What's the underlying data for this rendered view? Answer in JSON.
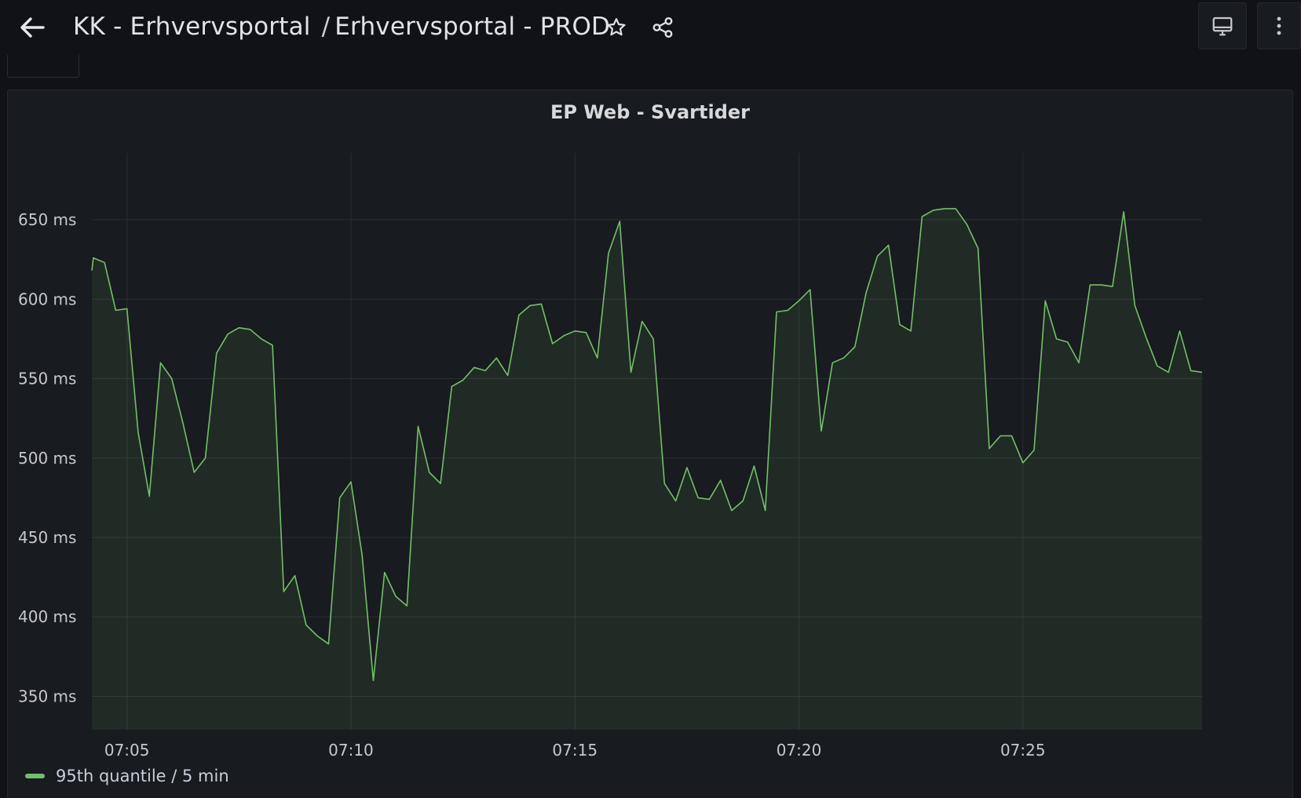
{
  "header": {
    "folder": "KK - Erhvervsportal",
    "separator": "/",
    "dashboard": "Erhvervsportal - PROD",
    "icons": {
      "back": "arrow-left-icon",
      "star": "star-icon",
      "share": "share-icon",
      "tv": "monitor-icon",
      "more": "kebab-menu-icon"
    }
  },
  "panel": {
    "title": "EP Web - Svartider"
  },
  "chart_data": {
    "type": "area",
    "title": "EP Web - Svartider",
    "xlabel": "",
    "ylabel": "",
    "x_ticks": [
      "07:05",
      "07:10",
      "07:15",
      "07:20",
      "07:25"
    ],
    "y_ticks": [
      "350 ms",
      "400 ms",
      "450 ms",
      "500 ms",
      "550 ms",
      "600 ms",
      "650 ms"
    ],
    "y_unit": "ms",
    "xlim": [
      "07:04:13",
      "07:29:00"
    ],
    "ylim": [
      329,
      692
    ],
    "grid": true,
    "legend": "bottom-left",
    "color": "#73bf69",
    "series": [
      {
        "name": "95th quantile / 5 min",
        "x": [
          "07:04:13",
          "07:04:15",
          "07:04:30",
          "07:04:45",
          "07:05:00",
          "07:05:15",
          "07:05:30",
          "07:05:45",
          "07:06:00",
          "07:06:15",
          "07:06:30",
          "07:06:45",
          "07:07:00",
          "07:07:15",
          "07:07:30",
          "07:07:45",
          "07:08:00",
          "07:08:15",
          "07:08:30",
          "07:08:45",
          "07:09:00",
          "07:09:15",
          "07:09:30",
          "07:09:45",
          "07:10:00",
          "07:10:15",
          "07:10:30",
          "07:10:45",
          "07:11:00",
          "07:11:15",
          "07:11:30",
          "07:11:45",
          "07:12:00",
          "07:12:15",
          "07:12:30",
          "07:12:45",
          "07:13:00",
          "07:13:15",
          "07:13:30",
          "07:13:45",
          "07:14:00",
          "07:14:15",
          "07:14:30",
          "07:14:45",
          "07:15:00",
          "07:15:15",
          "07:15:30",
          "07:15:45",
          "07:16:00",
          "07:16:15",
          "07:16:30",
          "07:16:45",
          "07:17:00",
          "07:17:15",
          "07:17:30",
          "07:17:45",
          "07:18:00",
          "07:18:15",
          "07:18:30",
          "07:18:45",
          "07:19:00",
          "07:19:15",
          "07:19:30",
          "07:19:45",
          "07:20:00",
          "07:20:15",
          "07:20:30",
          "07:20:45",
          "07:21:00",
          "07:21:15",
          "07:21:30",
          "07:21:45",
          "07:22:00",
          "07:22:15",
          "07:22:30",
          "07:22:45",
          "07:23:00",
          "07:23:15",
          "07:23:30",
          "07:23:45",
          "07:24:00",
          "07:24:15",
          "07:24:30",
          "07:24:45",
          "07:25:00",
          "07:25:15",
          "07:25:30",
          "07:25:45",
          "07:26:00",
          "07:26:15",
          "07:26:30",
          "07:26:45",
          "07:27:00",
          "07:27:15",
          "07:27:30",
          "07:27:45",
          "07:28:00",
          "07:28:15",
          "07:28:30",
          "07:28:45",
          "07:29:00"
        ],
        "values": [
          618,
          626,
          623,
          593,
          594,
          516,
          476,
          560,
          550,
          522,
          491,
          500,
          566,
          578,
          582,
          581,
          575,
          571,
          416,
          426,
          395,
          388,
          383,
          475,
          485,
          439,
          360,
          428,
          413,
          407,
          520,
          491,
          484,
          545,
          549,
          557,
          555,
          563,
          552,
          590,
          596,
          597,
          572,
          577,
          580,
          579,
          563,
          629,
          649,
          554,
          586,
          575,
          484,
          473,
          494,
          475,
          474,
          486,
          467,
          473,
          495,
          467,
          592,
          593,
          599,
          606,
          517,
          560,
          563,
          570,
          604,
          627,
          634,
          584,
          580,
          652,
          656,
          657,
          657,
          647,
          632,
          506,
          514,
          514,
          497,
          505,
          599,
          575,
          573,
          560,
          609,
          609,
          608,
          655,
          596,
          576,
          558,
          554,
          580,
          555,
          554
        ]
      }
    ]
  },
  "legend": {
    "label": "95th quantile / 5 min"
  }
}
